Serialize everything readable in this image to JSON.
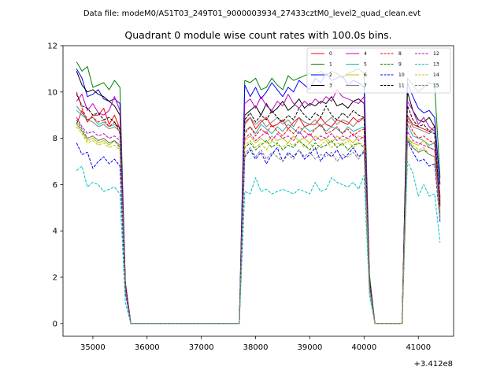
{
  "suptitle": "Data file: modeM0/AS1T03_249T01_9000003934_27433cztM0_level2_quad_clean.evt",
  "chart_data": {
    "type": "line",
    "title": "Quadrant 0 module wise count rates with 100.0s bins.",
    "xlabel": "",
    "ylabel": "",
    "x_offset_label": "+3.412e8",
    "xlim": [
      34450,
      41650
    ],
    "ylim": [
      -0.55,
      12.0
    ],
    "x_ticks": [
      35000,
      36000,
      37000,
      38000,
      39000,
      40000,
      41000
    ],
    "x_tick_labels": [
      "35000",
      "36000",
      "37000",
      "38000",
      "39000",
      "40000",
      "41000"
    ],
    "y_ticks": [
      0,
      2,
      4,
      6,
      8,
      10,
      12
    ],
    "y_tick_labels": [
      "0",
      "2",
      "4",
      "6",
      "8",
      "10",
      "12"
    ],
    "legend_position": "upper right",
    "x": [
      34700,
      34800,
      34900,
      35000,
      35100,
      35200,
      35300,
      35400,
      35500,
      35600,
      35700,
      35800,
      35900,
      36000,
      36100,
      36200,
      36300,
      36400,
      36500,
      36600,
      36700,
      36800,
      36900,
      37000,
      37100,
      37200,
      37300,
      37400,
      37500,
      37600,
      37700,
      37800,
      37900,
      38000,
      38100,
      38200,
      38300,
      38400,
      38500,
      38600,
      38700,
      38800,
      38900,
      39000,
      39100,
      39200,
      39300,
      39400,
      39500,
      39600,
      39700,
      39800,
      39900,
      40000,
      40100,
      40200,
      40300,
      40400,
      40500,
      40600,
      40700,
      40800,
      40900,
      41000,
      41100,
      41200,
      41300,
      41400
    ],
    "series": [
      {
        "name": "0",
        "color": "#ff0000",
        "dash": "solid",
        "values": [
          8.6,
          9.2,
          8.7,
          9.0,
          9.0,
          9.3,
          8.6,
          9.0,
          8.4,
          1.6,
          0,
          0,
          0,
          0,
          0,
          0,
          0,
          0,
          0,
          0,
          0,
          0,
          0,
          0,
          0,
          0,
          0,
          0,
          0,
          0,
          0,
          8.6,
          8.9,
          8.4,
          8.7,
          8.9,
          8.5,
          8.6,
          8.8,
          8.4,
          8.7,
          8.9,
          8.5,
          8.6,
          8.6,
          8.9,
          8.6,
          8.5,
          8.8,
          8.7,
          8.6,
          8.9,
          8.7,
          8.9,
          1.9,
          0,
          0,
          0,
          0,
          0,
          0,
          9.0,
          8.6,
          8.5,
          8.4,
          8.3,
          8.5,
          5.2
        ]
      },
      {
        "name": "1",
        "color": "#008000",
        "dash": "solid",
        "values": [
          11.3,
          10.9,
          11.1,
          10.2,
          10.3,
          10.4,
          10.1,
          10.5,
          10.2,
          1.8,
          0,
          0,
          0,
          0,
          0,
          0,
          0,
          0,
          0,
          0,
          0,
          0,
          0,
          0,
          0,
          0,
          0,
          0,
          0,
          0,
          0,
          10.5,
          10.4,
          10.6,
          10.1,
          10.2,
          10.6,
          10.3,
          10.1,
          10.7,
          10.5,
          10.6,
          10.7,
          10.8,
          10.7,
          10.9,
          10.7,
          10.9,
          10.8,
          10.6,
          10.8,
          10.9,
          11.0,
          10.8,
          2.1,
          0,
          0,
          0,
          0,
          0,
          0,
          10.6,
          10.3,
          10.0,
          10.2,
          10.4,
          10.3,
          6.3
        ]
      },
      {
        "name": "2",
        "color": "#0000ff",
        "dash": "solid",
        "values": [
          11.0,
          10.6,
          9.8,
          9.9,
          10.1,
          9.7,
          9.6,
          9.7,
          9.5,
          1.7,
          0,
          0,
          0,
          0,
          0,
          0,
          0,
          0,
          0,
          0,
          0,
          0,
          0,
          0,
          0,
          0,
          0,
          0,
          0,
          0,
          0,
          10.3,
          9.8,
          10.2,
          9.7,
          10.0,
          10.4,
          10.1,
          9.8,
          10.2,
          10.0,
          10.5,
          10.3,
          10.1,
          10.6,
          10.4,
          10.8,
          10.5,
          10.6,
          10.7,
          10.3,
          10.5,
          10.4,
          10.2,
          1.9,
          0,
          0,
          0,
          0,
          0,
          0,
          10.4,
          9.8,
          9.3,
          9.1,
          9.2,
          8.9,
          6.0
        ]
      },
      {
        "name": "3",
        "color": "#000000",
        "dash": "solid",
        "values": [
          10.9,
          10.3,
          10.0,
          10.1,
          9.9,
          9.8,
          9.6,
          9.4,
          9.0,
          1.7,
          0,
          0,
          0,
          0,
          0,
          0,
          0,
          0,
          0,
          0,
          0,
          0,
          0,
          0,
          0,
          0,
          0,
          0,
          0,
          0,
          0,
          9.0,
          9.2,
          9.4,
          9.0,
          9.5,
          9.1,
          9.3,
          9.6,
          9.2,
          9.4,
          9.7,
          9.3,
          9.5,
          9.4,
          9.6,
          9.5,
          9.8,
          9.4,
          9.5,
          9.3,
          9.6,
          9.7,
          9.5,
          1.8,
          0,
          0,
          0,
          0,
          0,
          0,
          10.0,
          9.2,
          8.8,
          8.7,
          8.9,
          8.5,
          5.4
        ]
      },
      {
        "name": "4",
        "color": "#c000c0",
        "dash": "solid",
        "values": [
          9.6,
          9.9,
          9.2,
          9.5,
          9.1,
          9.0,
          9.2,
          9.8,
          9.2,
          1.7,
          0,
          0,
          0,
          0,
          0,
          0,
          0,
          0,
          0,
          0,
          0,
          0,
          0,
          0,
          0,
          0,
          0,
          0,
          0,
          0,
          0,
          9.5,
          9.7,
          9.3,
          9.8,
          9.4,
          9.2,
          9.6,
          9.4,
          9.9,
          9.5,
          9.3,
          9.6,
          9.4,
          9.7,
          9.5,
          9.8,
          9.6,
          10.1,
          9.8,
          9.7,
          9.6,
          9.5,
          9.8,
          1.9,
          0,
          0,
          0,
          0,
          0,
          0,
          9.6,
          9.2,
          8.6,
          8.9,
          8.5,
          8.3,
          5.5
        ]
      },
      {
        "name": "5",
        "color": "#20b2aa",
        "dash": "solid",
        "values": [
          9.2,
          9.0,
          8.8,
          8.9,
          8.6,
          8.7,
          8.5,
          8.6,
          8.4,
          1.5,
          0,
          0,
          0,
          0,
          0,
          0,
          0,
          0,
          0,
          0,
          0,
          0,
          0,
          0,
          0,
          0,
          0,
          0,
          0,
          0,
          0,
          8.3,
          8.5,
          8.2,
          8.6,
          8.4,
          8.2,
          8.5,
          8.3,
          8.6,
          8.4,
          8.2,
          8.5,
          8.3,
          8.4,
          8.6,
          8.3,
          8.5,
          8.4,
          8.2,
          8.5,
          8.3,
          8.4,
          8.5,
          1.7,
          0,
          0,
          0,
          0,
          0,
          0,
          8.6,
          8.1,
          8.0,
          7.9,
          7.7,
          7.8,
          4.8
        ]
      },
      {
        "name": "6",
        "color": "#c0c000",
        "dash": "solid",
        "values": [
          8.6,
          8.3,
          7.9,
          8.0,
          7.8,
          7.9,
          7.7,
          7.9,
          7.7,
          1.4,
          0,
          0,
          0,
          0,
          0,
          0,
          0,
          0,
          0,
          0,
          0,
          0,
          0,
          0,
          0,
          0,
          0,
          0,
          0,
          0,
          0,
          7.9,
          8.1,
          7.8,
          8.0,
          7.8,
          8.1,
          7.9,
          8.0,
          7.8,
          8.1,
          7.9,
          8.0,
          7.8,
          8.1,
          7.9,
          8.0,
          7.8,
          8.1,
          7.9,
          8.0,
          7.8,
          8.1,
          8.0,
          1.6,
          0,
          0,
          0,
          0,
          0,
          0,
          8.0,
          7.8,
          7.7,
          7.9,
          7.6,
          7.5,
          4.9
        ]
      },
      {
        "name": "7",
        "color": "#808080",
        "dash": "solid",
        "values": [
          9.4,
          9.1,
          8.8,
          8.7,
          8.5,
          8.6,
          8.4,
          8.5,
          8.3,
          1.5,
          0,
          0,
          0,
          0,
          0,
          0,
          0,
          0,
          0,
          0,
          0,
          0,
          0,
          0,
          0,
          0,
          0,
          0,
          0,
          0,
          0,
          8.7,
          8.9,
          8.6,
          8.8,
          8.5,
          8.7,
          8.9,
          8.6,
          8.8,
          8.5,
          8.9,
          8.7,
          8.6,
          8.8,
          8.5,
          8.7,
          8.9,
          8.6,
          8.8,
          8.7,
          8.5,
          8.8,
          8.9,
          1.7,
          0,
          0,
          0,
          0,
          0,
          0,
          8.9,
          8.5,
          8.4,
          8.3,
          8.2,
          8.4,
          5.3
        ]
      },
      {
        "name": "8",
        "color": "#ff0000",
        "dash": "dashed",
        "values": [
          10.0,
          9.3,
          8.8,
          8.9,
          8.7,
          8.8,
          8.5,
          8.7,
          8.2,
          1.6,
          0,
          0,
          0,
          0,
          0,
          0,
          0,
          0,
          0,
          0,
          0,
          0,
          0,
          0,
          0,
          0,
          0,
          0,
          0,
          0,
          0,
          8.2,
          8.5,
          8.1,
          8.4,
          8.2,
          8.6,
          8.3,
          8.1,
          8.4,
          8.2,
          8.5,
          8.3,
          8.1,
          8.4,
          8.6,
          8.2,
          8.3,
          8.5,
          8.2,
          8.4,
          8.1,
          8.3,
          8.4,
          1.7,
          0,
          0,
          0,
          0,
          0,
          0,
          8.8,
          8.3,
          8.0,
          8.1,
          7.9,
          7.8,
          5.0
        ]
      },
      {
        "name": "9",
        "color": "#008000",
        "dash": "dashed",
        "values": [
          8.8,
          8.4,
          8.0,
          8.1,
          7.9,
          8.0,
          7.8,
          7.9,
          7.6,
          1.4,
          0,
          0,
          0,
          0,
          0,
          0,
          0,
          0,
          0,
          0,
          0,
          0,
          0,
          0,
          0,
          0,
          0,
          0,
          0,
          0,
          0,
          7.6,
          7.8,
          7.5,
          7.7,
          7.9,
          7.6,
          7.8,
          7.5,
          7.7,
          7.6,
          7.9,
          7.7,
          7.5,
          7.8,
          7.6,
          7.7,
          7.9,
          7.6,
          7.8,
          7.5,
          7.7,
          7.8,
          7.6,
          1.5,
          0,
          0,
          0,
          0,
          0,
          0,
          7.9,
          7.6,
          7.4,
          7.5,
          7.3,
          7.2,
          4.6
        ]
      },
      {
        "name": "10",
        "color": "#0000ff",
        "dash": "dashed",
        "values": [
          7.8,
          7.3,
          7.4,
          6.7,
          7.0,
          7.2,
          6.9,
          7.1,
          6.8,
          1.3,
          0,
          0,
          0,
          0,
          0,
          0,
          0,
          0,
          0,
          0,
          0,
          0,
          0,
          0,
          0,
          0,
          0,
          0,
          0,
          0,
          0,
          7.2,
          7.5,
          7.1,
          7.4,
          6.9,
          7.3,
          7.6,
          7.0,
          7.4,
          7.2,
          7.5,
          7.1,
          7.3,
          7.6,
          7.0,
          7.4,
          7.2,
          7.5,
          7.1,
          7.3,
          7.6,
          7.2,
          7.4,
          1.5,
          0,
          0,
          0,
          0,
          0,
          0,
          7.9,
          7.4,
          7.0,
          7.1,
          6.8,
          6.9,
          4.4
        ]
      },
      {
        "name": "11",
        "color": "#000000",
        "dash": "dashed",
        "values": [
          9.9,
          9.4,
          9.3,
          9.0,
          9.1,
          8.8,
          8.9,
          8.7,
          8.4,
          1.6,
          0,
          0,
          0,
          0,
          0,
          0,
          0,
          0,
          0,
          0,
          0,
          0,
          0,
          0,
          0,
          0,
          0,
          0,
          0,
          0,
          0,
          8.8,
          9.1,
          8.7,
          9.0,
          8.8,
          9.2,
          8.9,
          8.7,
          9.0,
          8.8,
          9.3,
          9.0,
          8.8,
          9.1,
          8.9,
          9.4,
          9.0,
          8.8,
          9.1,
          8.9,
          9.2,
          9.0,
          8.9,
          1.8,
          0,
          0,
          0,
          0,
          0,
          0,
          9.4,
          8.8,
          8.5,
          8.6,
          8.3,
          8.2,
          5.1
        ]
      },
      {
        "name": "12",
        "color": "#c000c0",
        "dash": "dashed",
        "values": [
          8.9,
          8.5,
          8.2,
          8.3,
          8.1,
          8.2,
          8.0,
          8.1,
          7.9,
          1.5,
          0,
          0,
          0,
          0,
          0,
          0,
          0,
          0,
          0,
          0,
          0,
          0,
          0,
          0,
          0,
          0,
          0,
          0,
          0,
          0,
          0,
          8.0,
          8.2,
          7.9,
          8.1,
          8.3,
          7.9,
          8.2,
          8.0,
          8.1,
          7.9,
          8.3,
          8.0,
          8.2,
          7.9,
          8.1,
          8.0,
          8.2,
          7.9,
          8.1,
          8.0,
          8.2,
          7.9,
          8.1,
          1.6,
          0,
          0,
          0,
          0,
          0,
          0,
          8.3,
          7.9,
          7.8,
          7.7,
          7.6,
          7.5,
          4.7
        ]
      },
      {
        "name": "13",
        "color": "#00c0c0",
        "dash": "dashed",
        "values": [
          6.6,
          6.8,
          5.9,
          6.1,
          6.0,
          5.7,
          5.8,
          5.9,
          5.6,
          0.9,
          0,
          0,
          0,
          0,
          0,
          0,
          0,
          0,
          0,
          0,
          0,
          0,
          0,
          0,
          0,
          0,
          0,
          0,
          0,
          0,
          0,
          5.7,
          5.6,
          6.3,
          5.7,
          5.8,
          5.6,
          5.7,
          5.8,
          5.7,
          5.6,
          5.8,
          5.7,
          5.6,
          6.1,
          5.7,
          5.8,
          6.3,
          6.1,
          6.0,
          5.9,
          6.1,
          5.8,
          6.4,
          1.2,
          0,
          0,
          0,
          0,
          0,
          0,
          7.0,
          6.5,
          5.5,
          6.0,
          5.5,
          5.6,
          3.5
        ]
      },
      {
        "name": "14",
        "color": "#c0c000",
        "dash": "dashed",
        "values": [
          8.5,
          8.2,
          7.8,
          7.9,
          7.7,
          7.8,
          7.6,
          7.7,
          7.5,
          1.4,
          0,
          0,
          0,
          0,
          0,
          0,
          0,
          0,
          0,
          0,
          0,
          0,
          0,
          0,
          0,
          0,
          0,
          0,
          0,
          0,
          0,
          7.7,
          7.9,
          7.6,
          7.8,
          7.5,
          7.9,
          7.7,
          7.6,
          7.8,
          7.7,
          7.9,
          7.6,
          7.8,
          7.5,
          7.7,
          7.9,
          7.6,
          7.8,
          7.7,
          7.9,
          7.6,
          7.8,
          7.7,
          1.5,
          0,
          0,
          0,
          0,
          0,
          0,
          8.1,
          7.7,
          7.5,
          7.6,
          7.3,
          7.2,
          4.6
        ]
      },
      {
        "name": "15",
        "color": "#808080",
        "dash": "dashed",
        "values": [
          8.7,
          8.3,
          8.0,
          8.1,
          7.9,
          8.0,
          7.8,
          7.9,
          7.7,
          1.4,
          0,
          0,
          0,
          0,
          0,
          0,
          0,
          0,
          0,
          0,
          0,
          0,
          0,
          0,
          0,
          0,
          0,
          0,
          0,
          0,
          0,
          7.3,
          7.6,
          7.2,
          7.5,
          7.1,
          7.4,
          7.2,
          7.0,
          7.3,
          7.1,
          7.5,
          7.2,
          7.4,
          7.1,
          7.3,
          7.2,
          7.4,
          7.0,
          7.3,
          7.2,
          7.4,
          7.1,
          7.5,
          1.5,
          0,
          0,
          0,
          0,
          0,
          0,
          8.0,
          7.6,
          7.4,
          7.5,
          7.3,
          7.2,
          4.5
        ]
      }
    ]
  }
}
